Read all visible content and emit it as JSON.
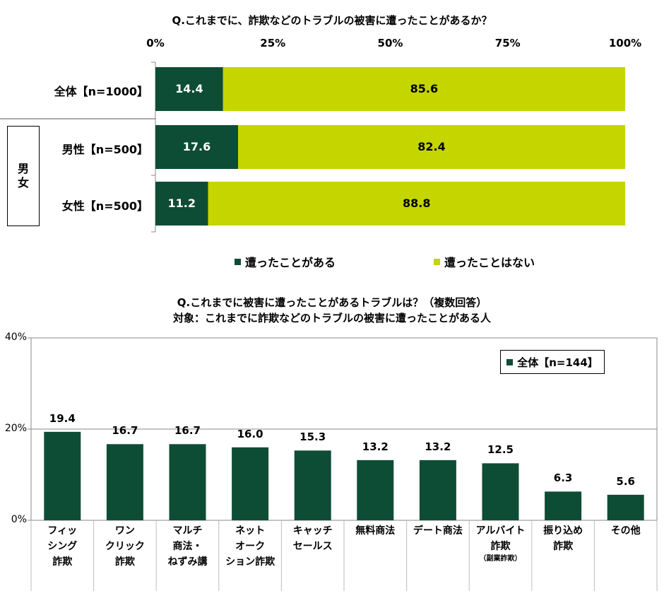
{
  "chart_data": [
    {
      "type": "bar",
      "orientation": "horizontal",
      "stacked": true,
      "title": "Q.これまでに、詐欺などのトラブルの被害に遭ったことがあるか？",
      "x_ticks": [
        "0%",
        "25%",
        "50%",
        "75%",
        "100%"
      ],
      "xlim": [
        0,
        100
      ],
      "categories": [
        "全体【n=1000】",
        "男性【n=500】",
        "女性【n=500】"
      ],
      "group_label": "男女",
      "series": [
        {
          "name": "遭ったことがある",
          "values": [
            14.4,
            17.6,
            11.2
          ],
          "labels": [
            "14.4",
            "17.6",
            "11.2"
          ],
          "color": "#0e4d35"
        },
        {
          "name": "遭ったことはない",
          "values": [
            85.6,
            82.4,
            88.8
          ],
          "labels": [
            "85.6",
            "82.4",
            "88.8"
          ],
          "color": "#c5d500"
        }
      ],
      "legend_position": "bottom"
    },
    {
      "type": "bar",
      "title": "Q.これまでに被害に遭ったことがあるトラブルは？（複数回答）",
      "subtitle": "対象：これまでに詐欺などのトラブルの被害に遭ったことがある人",
      "y_ticks": [
        "0%",
        "20%",
        "40%"
      ],
      "ylim": [
        0,
        40
      ],
      "categories": [
        {
          "lines": [
            "フィッ",
            "シング",
            "詐欺"
          ]
        },
        {
          "lines": [
            "ワン",
            "クリック",
            "詐欺"
          ]
        },
        {
          "lines": [
            "マルチ",
            "商法・",
            "ねずみ講"
          ]
        },
        {
          "lines": [
            "ネット",
            "オーク",
            "ション詐欺"
          ]
        },
        {
          "lines": [
            "キャッチ",
            "セールス"
          ]
        },
        {
          "lines": [
            "無料商法"
          ]
        },
        {
          "lines": [
            "デート商法"
          ]
        },
        {
          "lines": [
            "アルバイト",
            "詐欺"
          ],
          "sub": "（副業詐欺）"
        },
        {
          "lines": [
            "振り込め",
            "詐欺"
          ]
        },
        {
          "lines": [
            "その他"
          ]
        }
      ],
      "series": [
        {
          "name": "全体【n=144】",
          "values": [
            19.4,
            16.7,
            16.7,
            16.0,
            15.3,
            13.2,
            13.2,
            12.5,
            6.3,
            5.6
          ],
          "labels": [
            "19.4",
            "16.7",
            "16.7",
            "16.0",
            "15.3",
            "13.2",
            "13.2",
            "12.5",
            "6.3",
            "5.6"
          ],
          "color": "#0e4d35"
        }
      ],
      "legend_position": "top-right",
      "grid": true
    }
  ]
}
